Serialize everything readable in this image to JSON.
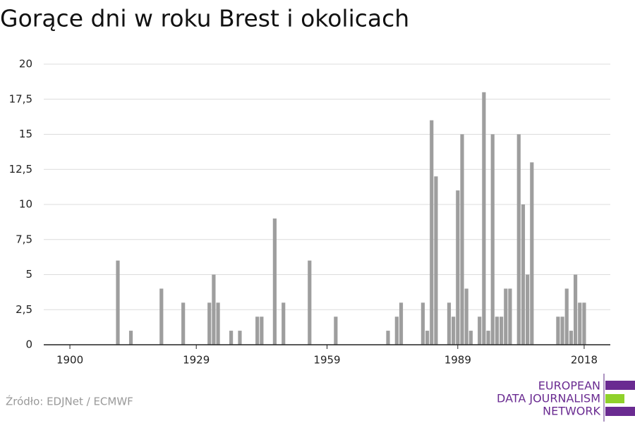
{
  "chart_data": {
    "type": "bar",
    "title": "Gorące dni w roku Brest i okolicach",
    "x": [
      1911,
      1914,
      1921,
      1926,
      1932,
      1933,
      1934,
      1937,
      1939,
      1943,
      1944,
      1947,
      1949,
      1955,
      1961,
      1973,
      1975,
      1976,
      1981,
      1982,
      1983,
      1984,
      1987,
      1988,
      1989,
      1990,
      1991,
      1992,
      1994,
      1995,
      1996,
      1997,
      1998,
      1999,
      2000,
      2001,
      2003,
      2004,
      2005,
      2006,
      2012,
      2013,
      2014,
      2015,
      2016,
      2017,
      2018
    ],
    "values": [
      6,
      1,
      4,
      3,
      3,
      5,
      3,
      1,
      1,
      2,
      2,
      9,
      3,
      6,
      2,
      1,
      2,
      3,
      3,
      1,
      16,
      12,
      3,
      2,
      11,
      15,
      4,
      1,
      2,
      18,
      1,
      15,
      2,
      2,
      4,
      4,
      15,
      10,
      5,
      13,
      2,
      2,
      4,
      1,
      5,
      3,
      3
    ],
    "color": "#9e9e9e",
    "xlim": [
      1894,
      2024
    ],
    "xticks": [
      1900,
      1929,
      1959,
      1989,
      2018
    ],
    "ylim": [
      0,
      20
    ],
    "yticks": [
      0,
      {
        "value": 2.5,
        "label": "2,5"
      },
      5,
      {
        "value": 7.5,
        "label": "7,5"
      },
      10,
      {
        "value": 12.5,
        "label": "12,5"
      },
      15,
      {
        "value": 17.5,
        "label": "17,5"
      },
      20
    ],
    "grid": true
  },
  "footer": {
    "source": "Źródło: EDJNet / ECMWF",
    "logo": [
      "EUROPEAN",
      "DATA JOURNALISM",
      "NETWORK"
    ]
  }
}
